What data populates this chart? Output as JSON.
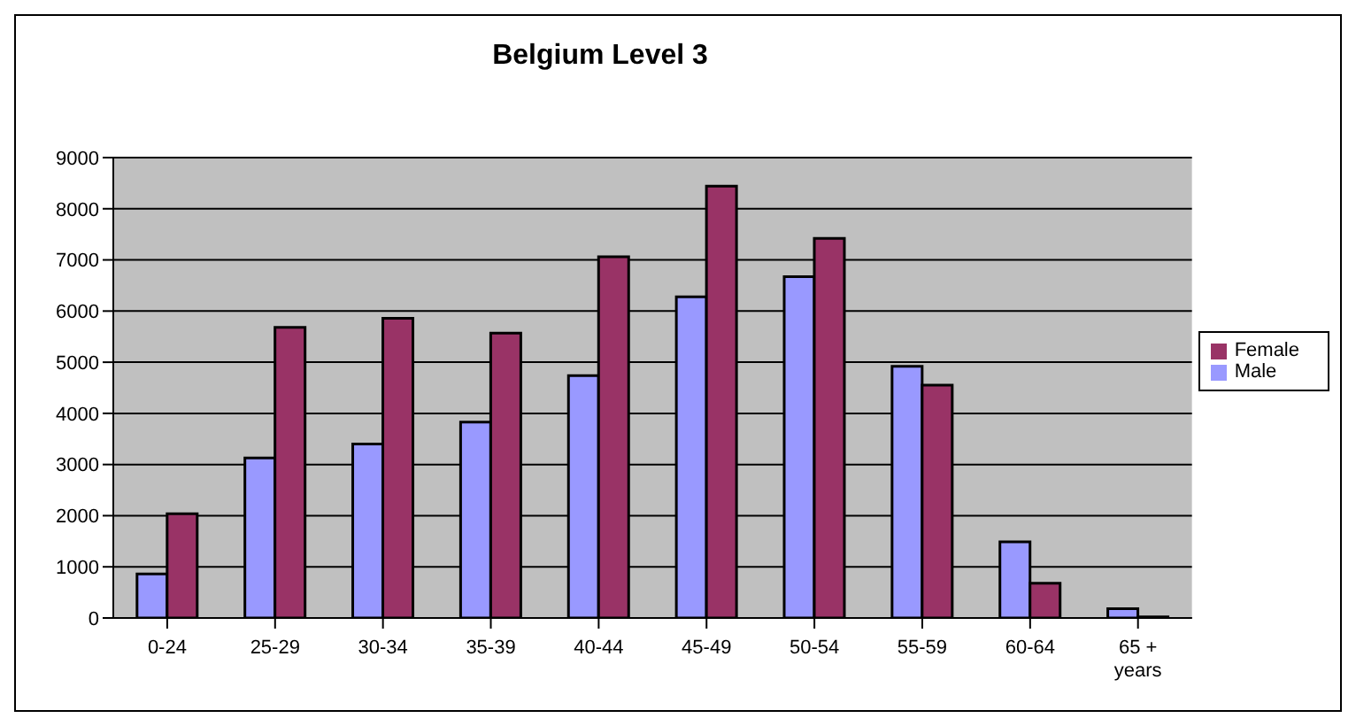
{
  "chart_data": {
    "type": "bar",
    "title": "Belgium Level 3",
    "categories": [
      "0-24",
      "25-29",
      "30-34",
      "35-39",
      "40-44",
      "45-49",
      "50-54",
      "55-59",
      "60-64",
      "65 + years"
    ],
    "series": [
      {
        "name": "Male",
        "color": "#9999ff",
        "values": [
          860,
          3130,
          3400,
          3830,
          4740,
          6280,
          6670,
          4920,
          1490,
          180
        ]
      },
      {
        "name": "Female",
        "color": "#993366",
        "values": [
          2040,
          5680,
          5860,
          5570,
          7060,
          8440,
          7420,
          4550,
          680,
          20
        ]
      }
    ],
    "ylim": [
      0,
      9000
    ],
    "yticks": [
      0,
      1000,
      2000,
      3000,
      4000,
      5000,
      6000,
      7000,
      8000,
      9000
    ],
    "grid": "y",
    "legend": "right"
  }
}
